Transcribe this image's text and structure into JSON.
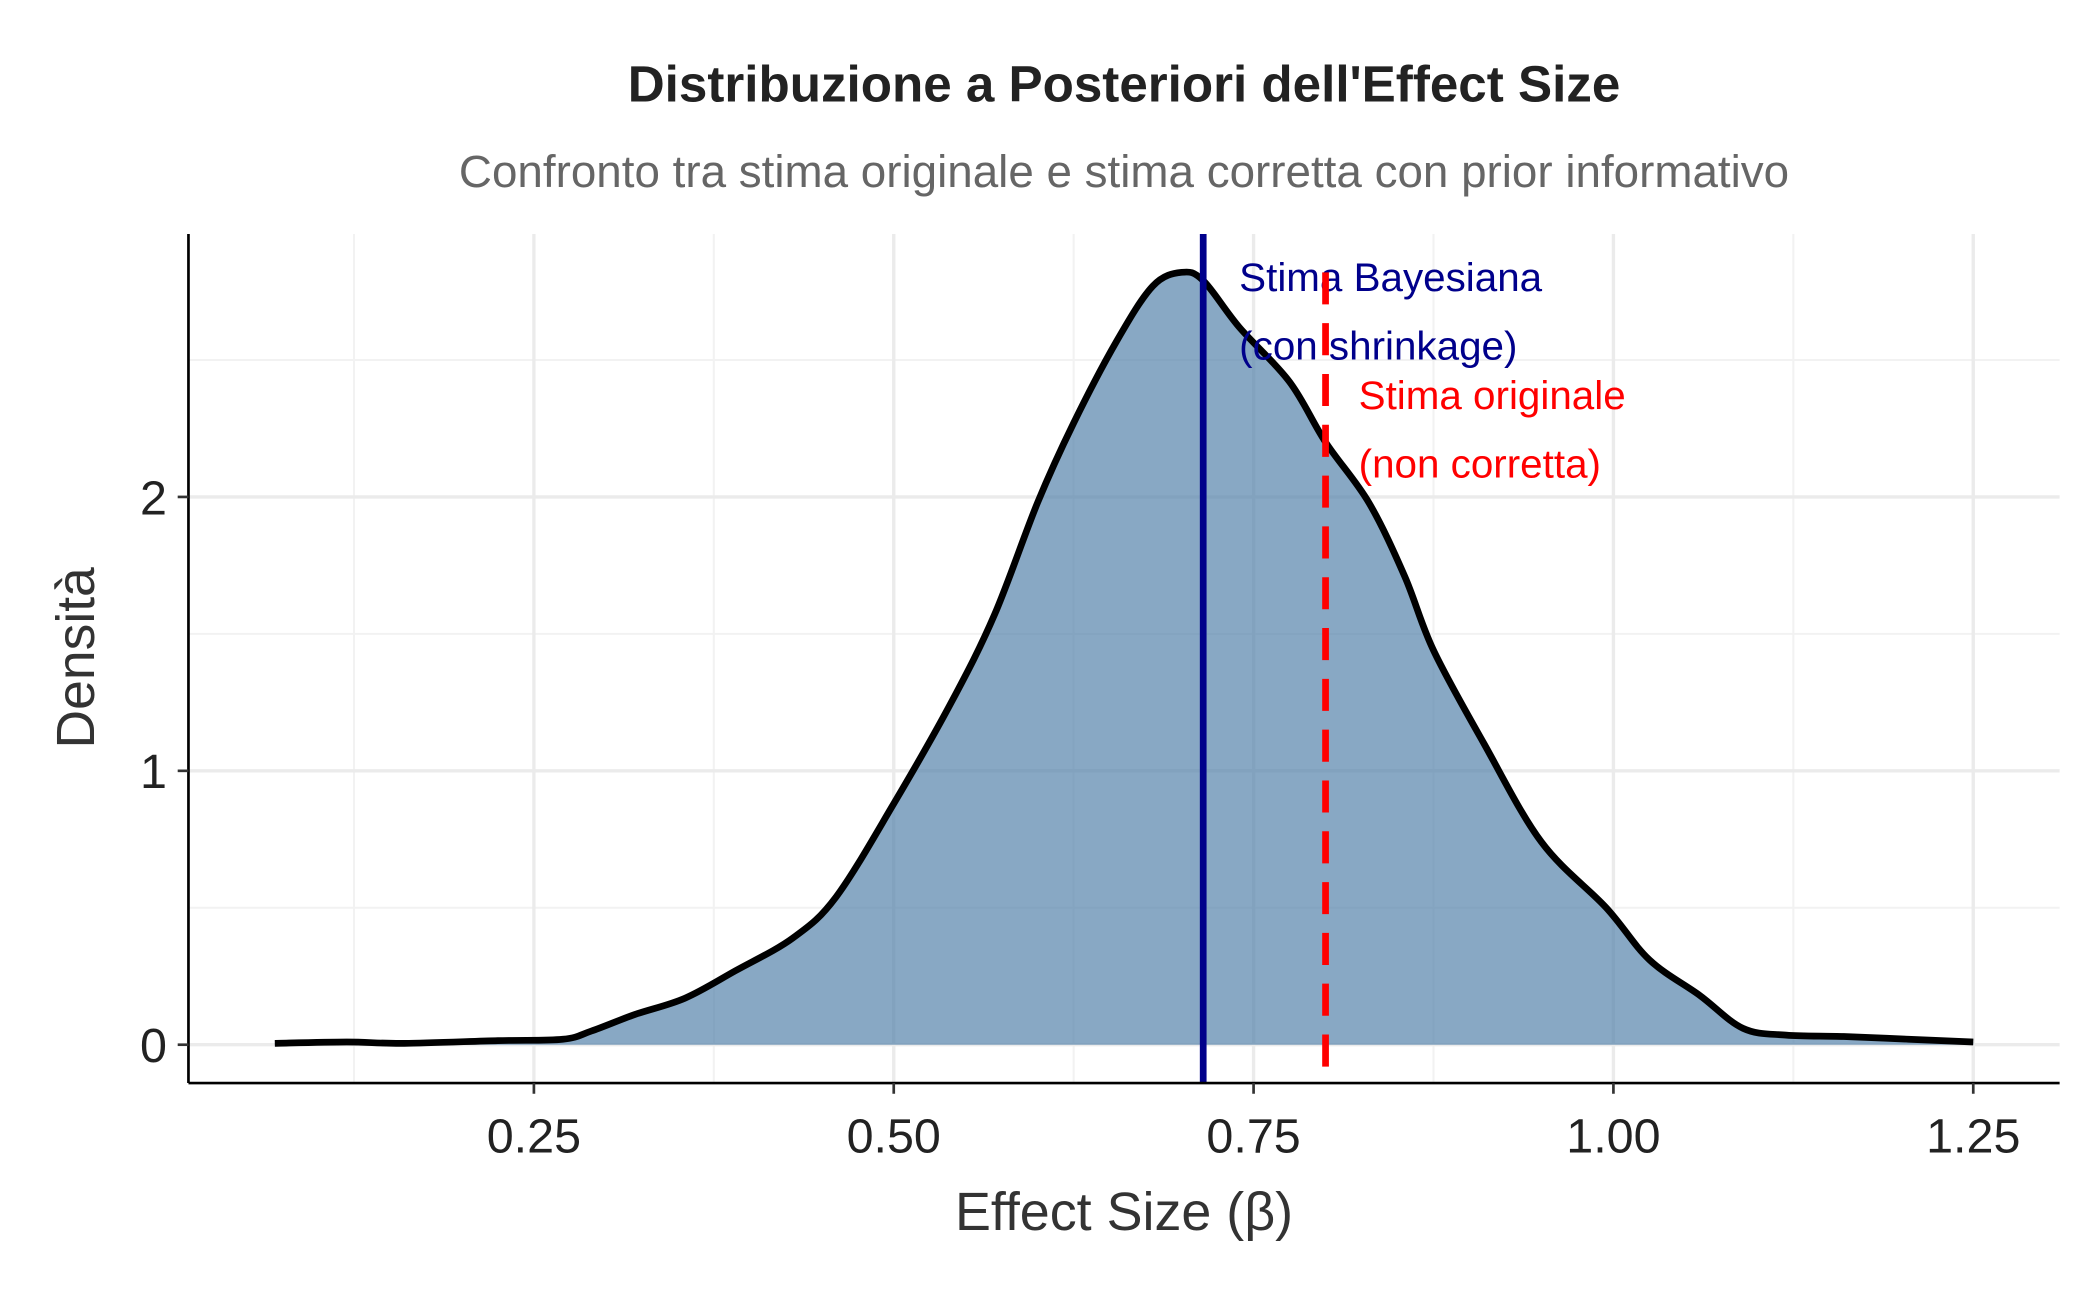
{
  "chart_data": {
    "type": "area",
    "title": "Distribuzione a Posteriori dell'Effect Size",
    "subtitle": "Confronto tra stima originale e stima corretta con prior informativo",
    "xlabel": "Effect Size (β)",
    "ylabel": "Densità",
    "xlim": [
      0.01,
      1.31
    ],
    "ylim": [
      -0.14,
      2.96
    ],
    "xticks": [
      0.25,
      0.5,
      0.75,
      1.0,
      1.25
    ],
    "xtick_labels": [
      "0.25",
      "0.50",
      "0.75",
      "1.00",
      "1.25"
    ],
    "yticks": [
      0,
      1,
      2
    ],
    "ytick_labels": [
      "0",
      "1",
      "2"
    ],
    "grid": true,
    "fill_color": "#4F7FA8",
    "line_color": "#000000",
    "density": {
      "x": [
        0.07,
        0.12,
        0.16,
        0.225,
        0.27,
        0.29,
        0.32,
        0.355,
        0.39,
        0.43,
        0.46,
        0.5,
        0.54,
        0.57,
        0.6,
        0.625,
        0.655,
        0.68,
        0.7,
        0.715,
        0.74,
        0.775,
        0.8,
        0.83,
        0.855,
        0.875,
        0.91,
        0.95,
        0.995,
        1.025,
        1.06,
        1.09,
        1.12,
        1.16,
        1.205,
        1.25
      ],
      "y": [
        0.005,
        0.01,
        0.005,
        0.015,
        0.02,
        0.05,
        0.11,
        0.17,
        0.27,
        0.39,
        0.54,
        0.88,
        1.25,
        1.57,
        1.98,
        2.27,
        2.57,
        2.77,
        2.82,
        2.79,
        2.62,
        2.42,
        2.2,
        1.98,
        1.71,
        1.44,
        1.1,
        0.74,
        0.5,
        0.31,
        0.18,
        0.06,
        0.035,
        0.03,
        0.02,
        0.01
      ]
    },
    "reference_lines": [
      {
        "x": 0.715,
        "color": "#00008B",
        "style": "solid",
        "label_lines": [
          "Stima Bayesiana",
          "(con shrinkage)"
        ],
        "label_x": 0.74,
        "label_y": [
          2.8,
          2.55
        ]
      },
      {
        "x": 0.8,
        "color": "#FF0000",
        "style": "dashed",
        "label_lines": [
          "Stima originale",
          "(non corretta)"
        ],
        "label_x": 0.823,
        "label_y": [
          2.37,
          2.12
        ]
      }
    ]
  }
}
